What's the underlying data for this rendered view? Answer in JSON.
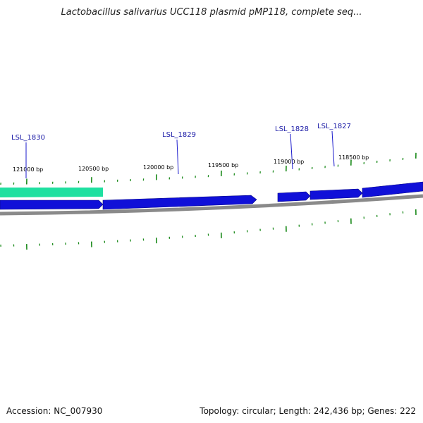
{
  "title": "Lactobacillus salivarius UCC118 plasmid pMP118, complete seq...",
  "footer": {
    "accession": "Accession: NC_007930",
    "summary": "Topology: circular; Length: 242,436 bp; Genes: 222"
  },
  "colors": {
    "gene_forward": "#1010d8",
    "gene_highlight": "#1fe0a0",
    "backbone": "#8a8a8a",
    "tick": "#1a8a1a",
    "label_line": "#1a1acc"
  },
  "scale_labels": [
    "121000 bp",
    "120500 bp",
    "120000 bp",
    "119500 bp",
    "119000 bp",
    "118500 bp"
  ],
  "genes": [
    {
      "id": "LSL_1830",
      "label": "LSL_1830"
    },
    {
      "id": "LSL_1829",
      "label": "LSL_1829"
    },
    {
      "id": "LSL_1828",
      "label": "LSL_1828"
    },
    {
      "id": "LSL_1827",
      "label": "LSL_1827"
    }
  ]
}
